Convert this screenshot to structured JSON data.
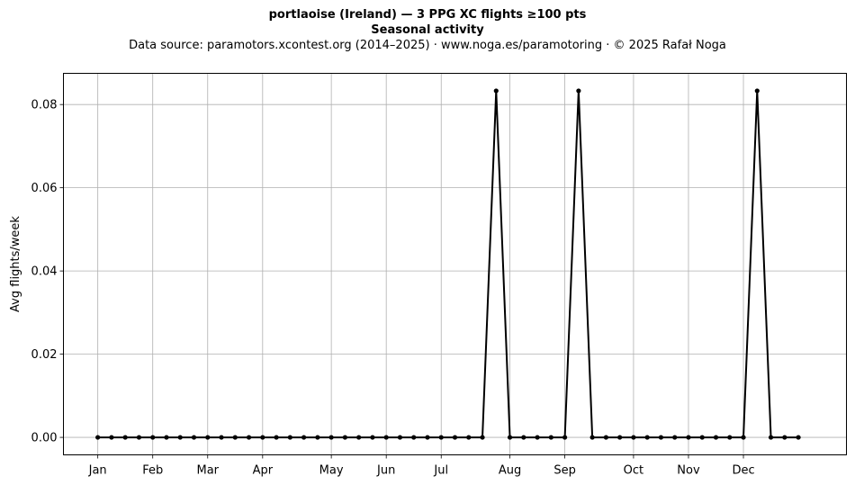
{
  "header": {
    "title": "portlaoise (Ireland)  —  3 PPG XC flights ≥100 pts",
    "subtitle": "Seasonal activity",
    "source": "Data source: paramotors.xcontest.org (2014–2025)  ·  www.noga.es/paramotoring  ·  © 2025 Rafał Noga"
  },
  "chart_data": {
    "type": "line",
    "title": "portlaoise (Ireland)  —  3 PPG XC flights ≥100 pts",
    "subtitle": "Seasonal activity",
    "xlabel": "",
    "ylabel": "Avg flights/week",
    "x_unit": "week of year",
    "x_ticks": [
      {
        "label": "Jan",
        "week": 1
      },
      {
        "label": "Feb",
        "week": 5
      },
      {
        "label": "Mar",
        "week": 9
      },
      {
        "label": "Apr",
        "week": 13
      },
      {
        "label": "May",
        "week": 18
      },
      {
        "label": "Jun",
        "week": 22
      },
      {
        "label": "Jul",
        "week": 26
      },
      {
        "label": "Aug",
        "week": 31
      },
      {
        "label": "Sep",
        "week": 35
      },
      {
        "label": "Oct",
        "week": 40
      },
      {
        "label": "Nov",
        "week": 44
      },
      {
        "label": "Dec",
        "week": 48
      }
    ],
    "xlim": [
      -1.5,
      55.5
    ],
    "ylim": [
      -0.0042,
      0.0875
    ],
    "y_ticks": [
      0.0,
      0.02,
      0.04,
      0.06,
      0.08
    ],
    "y_tick_labels": [
      "0.00",
      "0.02",
      "0.04",
      "0.06",
      "0.08"
    ],
    "grid": true,
    "legend": "none",
    "series": [
      {
        "color": "#000000",
        "marker": "dot",
        "x": [
          1,
          2,
          3,
          4,
          5,
          6,
          7,
          8,
          9,
          10,
          11,
          12,
          13,
          14,
          15,
          16,
          17,
          18,
          19,
          20,
          21,
          22,
          23,
          24,
          25,
          26,
          27,
          28,
          29,
          30,
          31,
          32,
          33,
          34,
          35,
          36,
          37,
          38,
          39,
          40,
          41,
          42,
          43,
          44,
          45,
          46,
          47,
          48,
          49,
          50,
          51,
          52
        ],
        "values": [
          0,
          0,
          0,
          0,
          0,
          0,
          0,
          0,
          0,
          0,
          0,
          0,
          0,
          0,
          0,
          0,
          0,
          0,
          0,
          0,
          0,
          0,
          0,
          0,
          0,
          0,
          0,
          0,
          0,
          0.0833,
          0,
          0,
          0,
          0,
          0,
          0.0833,
          0,
          0,
          0,
          0,
          0,
          0,
          0,
          0,
          0,
          0,
          0,
          0,
          0.0833,
          0,
          0,
          0
        ]
      }
    ]
  }
}
